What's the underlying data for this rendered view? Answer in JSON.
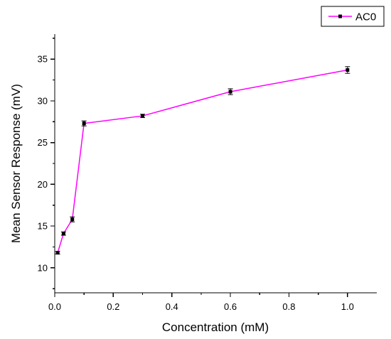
{
  "chart_data": {
    "type": "line",
    "xlabel": "Concentration (mM)",
    "ylabel": "Mean Sensor Response (mV)",
    "xlim": [
      0.0,
      1.1
    ],
    "ylim": [
      7,
      38
    ],
    "xticks": [
      "0.0",
      "0.2",
      "0.4",
      "0.6",
      "0.8",
      "1.0"
    ],
    "yticks": [
      "10",
      "15",
      "20",
      "25",
      "30",
      "35"
    ],
    "legend_position": "top-right",
    "grid": false,
    "series": [
      {
        "name": "AC0",
        "color": "#ff00ff",
        "marker_color": "#000000",
        "marker": "square",
        "x": [
          0.01,
          0.03,
          0.06,
          0.1,
          0.3,
          0.6,
          1.0
        ],
        "y": [
          11.8,
          14.1,
          15.8,
          27.3,
          28.2,
          31.1,
          33.7
        ],
        "error": [
          0.15,
          0.2,
          0.3,
          0.3,
          0.2,
          0.35,
          0.4
        ]
      }
    ]
  }
}
